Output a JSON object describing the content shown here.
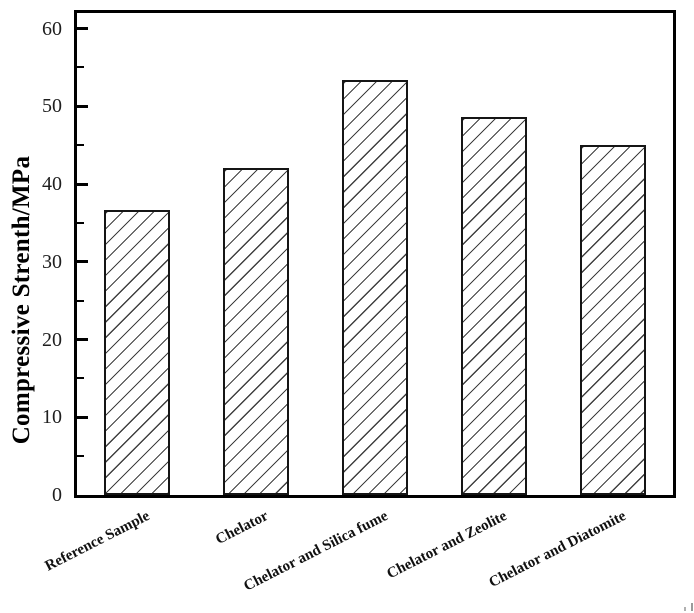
{
  "chart_data": {
    "type": "bar",
    "title": "",
    "xlabel": "",
    "ylabel": "Compressive Strenth/MPa",
    "categories": [
      "Reference Sample",
      "Chelator",
      "Chelator and Silica fume",
      "Chelator and Zeolite",
      "Chelator and Diatomite"
    ],
    "values": [
      36.6,
      42.0,
      53.4,
      48.6,
      45.0
    ],
    "ylim": [
      0,
      62
    ],
    "yticks_major": [
      0,
      10,
      20,
      30,
      40,
      50,
      60
    ],
    "yticks_minor": [
      5,
      15,
      25,
      35,
      45,
      55
    ],
    "grid": false,
    "legend": false,
    "bar_fill": "#ffffff",
    "bar_hatch": "forward-diagonal",
    "hatch_color": "#3f3f3f",
    "frame_color": "#000000",
    "ticks_direction": "in"
  }
}
